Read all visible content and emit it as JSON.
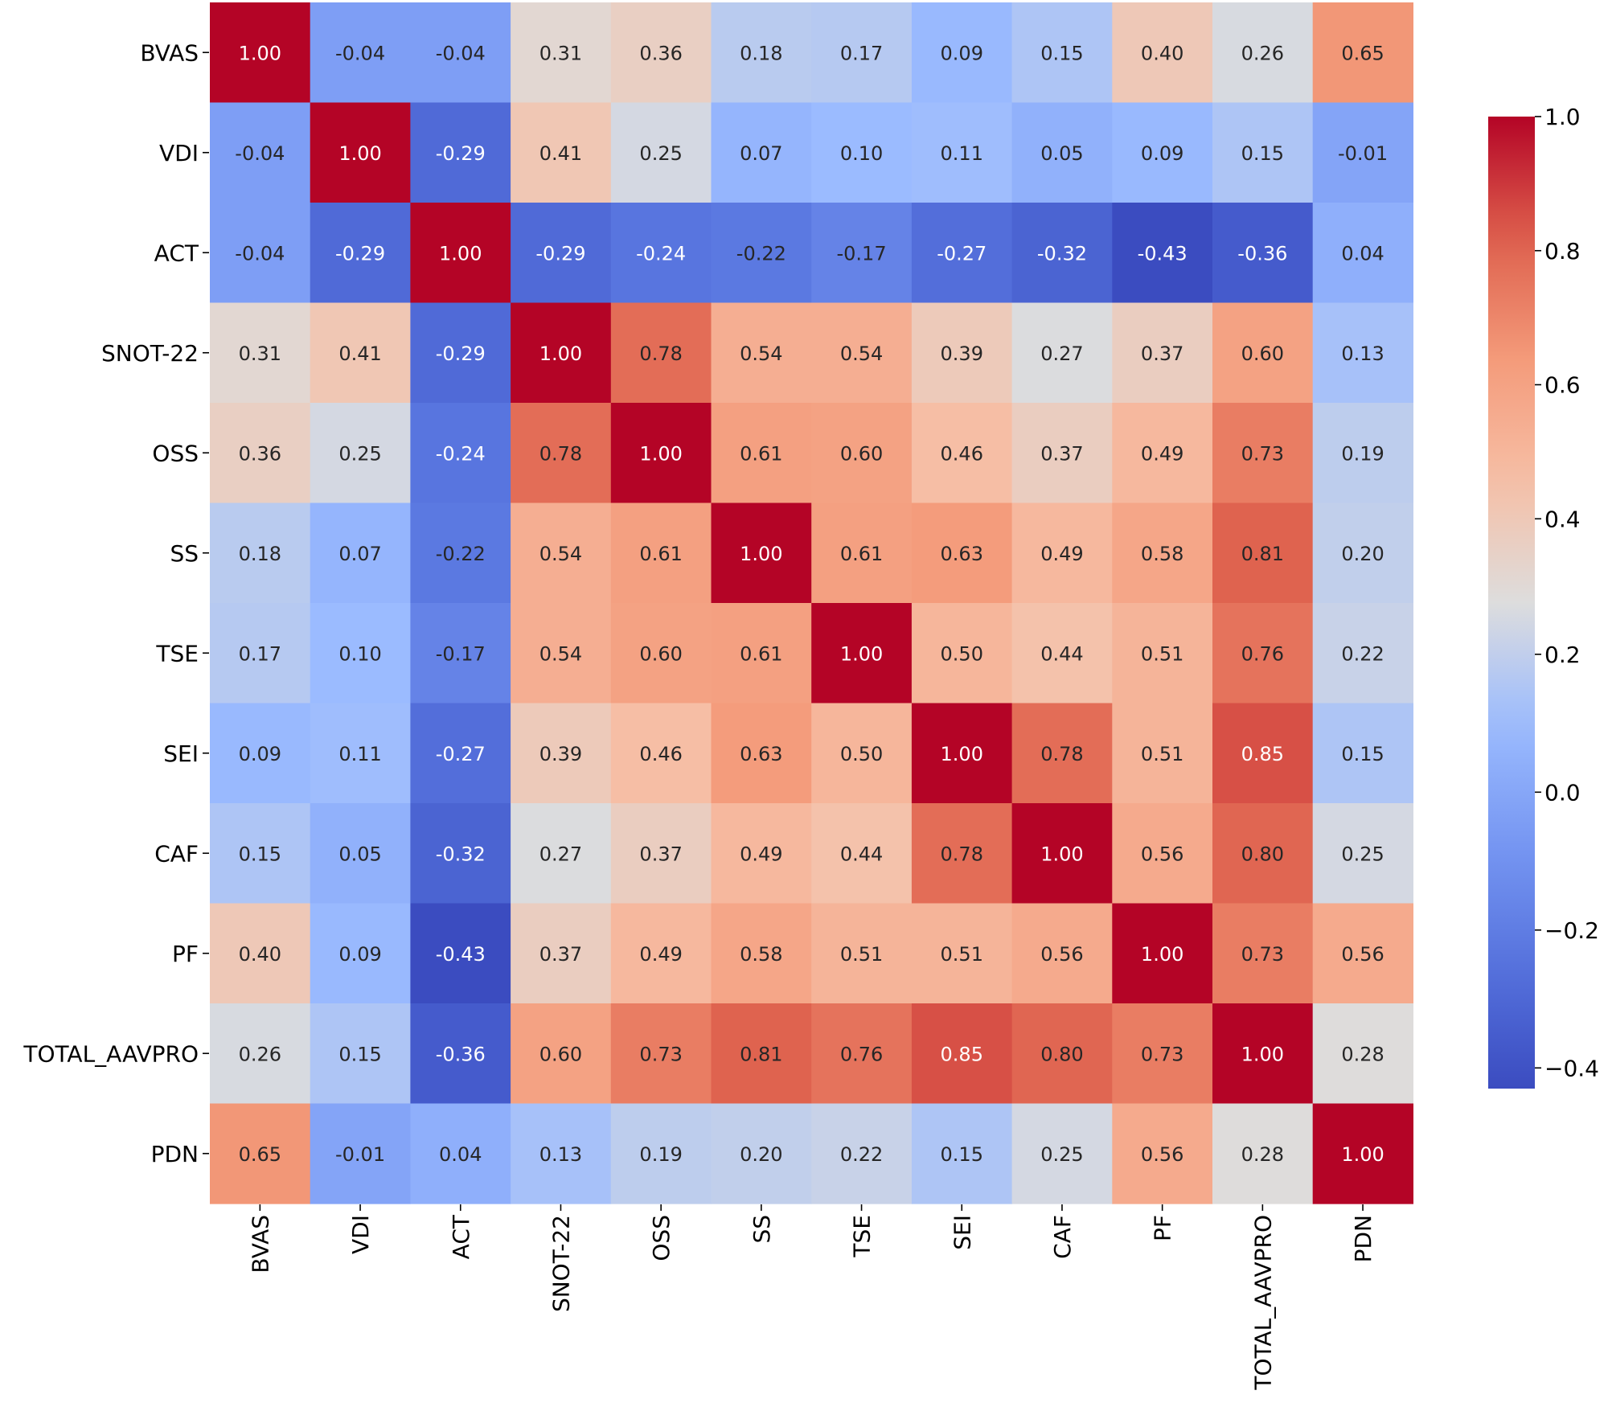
{
  "chart_data": {
    "type": "heatmap",
    "title": "",
    "xlabel": "",
    "ylabel": "",
    "labels": [
      "BVAS",
      "VDI",
      "ACT",
      "SNOT-22",
      "OSS",
      "SS",
      "TSE",
      "SEI",
      "CAF",
      "PF",
      "TOTAL_AAVPRO",
      "PDN"
    ],
    "matrix": [
      [
        1.0,
        -0.04,
        -0.04,
        0.31,
        0.36,
        0.18,
        0.17,
        0.09,
        0.15,
        0.4,
        0.26,
        0.65
      ],
      [
        -0.04,
        1.0,
        -0.29,
        0.41,
        0.25,
        0.07,
        0.1,
        0.11,
        0.05,
        0.09,
        0.15,
        -0.01
      ],
      [
        -0.04,
        -0.29,
        1.0,
        -0.29,
        -0.24,
        -0.22,
        -0.17,
        -0.27,
        -0.32,
        -0.43,
        -0.36,
        0.04
      ],
      [
        0.31,
        0.41,
        -0.29,
        1.0,
        0.78,
        0.54,
        0.54,
        0.39,
        0.27,
        0.37,
        0.6,
        0.13
      ],
      [
        0.36,
        0.25,
        -0.24,
        0.78,
        1.0,
        0.61,
        0.6,
        0.46,
        0.37,
        0.49,
        0.73,
        0.19
      ],
      [
        0.18,
        0.07,
        -0.22,
        0.54,
        0.61,
        1.0,
        0.61,
        0.63,
        0.49,
        0.58,
        0.81,
        0.2
      ],
      [
        0.17,
        0.1,
        -0.17,
        0.54,
        0.6,
        0.61,
        1.0,
        0.5,
        0.44,
        0.51,
        0.76,
        0.22
      ],
      [
        0.09,
        0.11,
        -0.27,
        0.39,
        0.46,
        0.63,
        0.5,
        1.0,
        0.78,
        0.51,
        0.85,
        0.15
      ],
      [
        0.15,
        0.05,
        -0.32,
        0.27,
        0.37,
        0.49,
        0.44,
        0.78,
        1.0,
        0.56,
        0.8,
        0.25
      ],
      [
        0.4,
        0.09,
        -0.43,
        0.37,
        0.49,
        0.58,
        0.51,
        0.51,
        0.56,
        1.0,
        0.73,
        0.56
      ],
      [
        0.26,
        0.15,
        -0.36,
        0.6,
        0.73,
        0.81,
        0.76,
        0.85,
        0.8,
        0.73,
        1.0,
        0.28
      ],
      [
        0.65,
        -0.01,
        0.04,
        0.13,
        0.19,
        0.2,
        0.22,
        0.15,
        0.25,
        0.56,
        0.28,
        1.0
      ]
    ],
    "colormap": "coolwarm",
    "vmin": -0.43,
    "vmax": 1.0,
    "colorbar": {
      "ticks": [
        1.0,
        0.8,
        0.6,
        0.4,
        0.2,
        0.0,
        -0.2,
        -0.4
      ],
      "tick_labels": [
        "1.0",
        "0.8",
        "0.6",
        "0.4",
        "0.2",
        "0.0",
        "−0.2",
        "−0.4"
      ],
      "position": "right"
    },
    "annotation_format": "0.00"
  }
}
